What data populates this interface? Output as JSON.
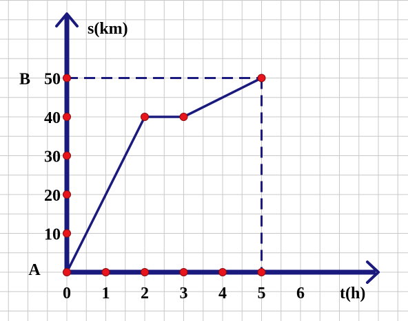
{
  "chart_data": {
    "type": "line",
    "xlabel": "t(h)",
    "ylabel": "s(km)",
    "x_ticks": [
      0,
      1,
      2,
      3,
      4,
      5,
      6
    ],
    "y_ticks": [
      10,
      20,
      30,
      40,
      50
    ],
    "xlim": [
      0,
      8
    ],
    "ylim": [
      0,
      65
    ],
    "grid": true,
    "series": [
      {
        "x": [
          0,
          2,
          3,
          5
        ],
        "y": [
          0,
          40,
          40,
          50
        ]
      }
    ],
    "point_labels": [
      {
        "text": "A",
        "x": 0,
        "y": 0
      },
      {
        "text": "B",
        "x": 0,
        "y": 50
      }
    ],
    "guide_lines": [
      {
        "style": "dashed",
        "from": [
          0,
          50
        ],
        "to": [
          5,
          50
        ]
      },
      {
        "style": "dashed",
        "from": [
          5,
          50
        ],
        "to": [
          5,
          0
        ]
      }
    ],
    "markers": [
      [
        0,
        0
      ],
      [
        1,
        0
      ],
      [
        2,
        0
      ],
      [
        3,
        0
      ],
      [
        4,
        0
      ],
      [
        5,
        0
      ],
      [
        0,
        10
      ],
      [
        0,
        20
      ],
      [
        0,
        30
      ],
      [
        0,
        40
      ],
      [
        0,
        50
      ],
      [
        2,
        40
      ],
      [
        3,
        40
      ],
      [
        5,
        50
      ]
    ],
    "colors": {
      "line": "#1a1a7e",
      "marker": "#e8141c",
      "grid": "#c8c8c8"
    }
  }
}
